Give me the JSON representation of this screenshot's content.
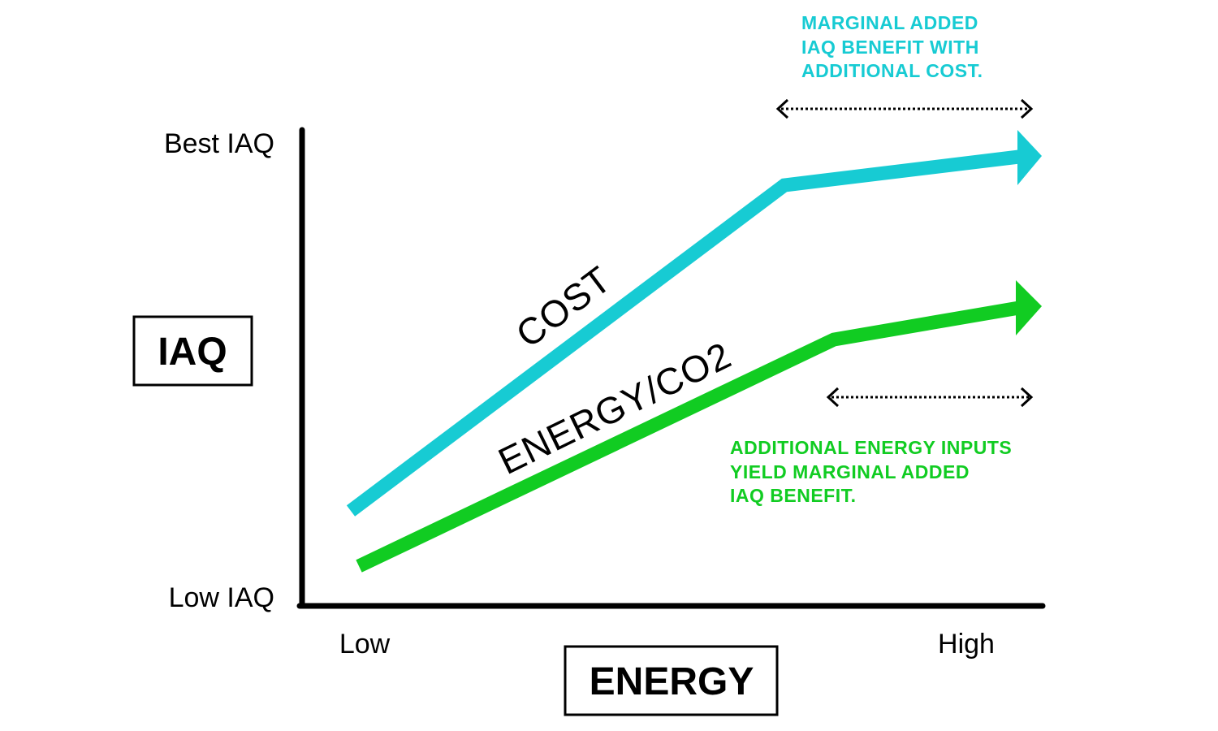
{
  "y_axis": {
    "top_label": "Best IAQ",
    "bottom_label": "Low IAQ",
    "title": "IAQ"
  },
  "x_axis": {
    "left_label": "Low",
    "right_label": "High",
    "title": "ENERGY"
  },
  "lines": {
    "cost": {
      "label": "COST",
      "color": "#17CBD3"
    },
    "energy": {
      "label": "ENERGY/CO2",
      "color": "#11CC22"
    }
  },
  "notes": {
    "cost": {
      "lines": [
        "MARGINAL ADDED",
        "IAQ BENEFIT WITH",
        "ADDITIONAL COST."
      ],
      "color": "#17CBD3"
    },
    "energy": {
      "lines": [
        "ADDITIONAL ENERGY INPUTS",
        "YIELD MARGINAL ADDED",
        "IAQ BENEFIT."
      ],
      "color": "#11CC22"
    }
  },
  "range_arrows": {
    "icon": "dotted-double-arrow-icon",
    "color": "#000000"
  },
  "axis_color": "#000000"
}
